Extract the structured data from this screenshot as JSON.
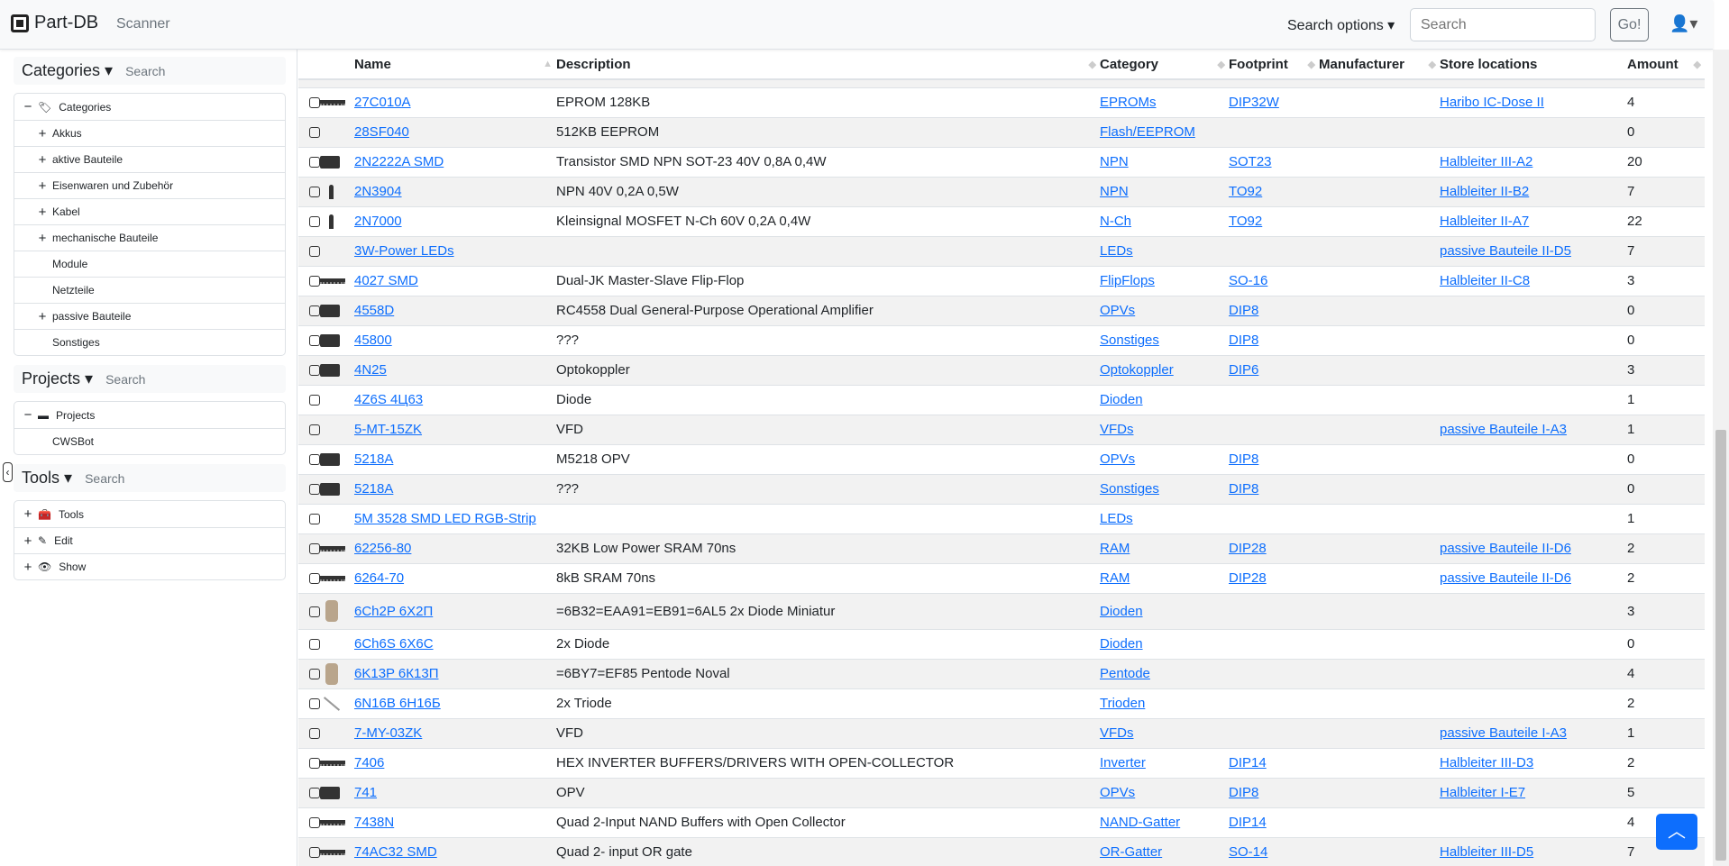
{
  "nav": {
    "brand": "Part-DB",
    "scanner": "Scanner",
    "search_options": "Search options",
    "search_placeholder": "Search",
    "go": "Go!"
  },
  "sidebar": {
    "categories": {
      "title": "Categories",
      "search": "Search",
      "items": [
        {
          "label": "Categories",
          "pm": "−",
          "root": true
        },
        {
          "label": "Akkus",
          "pm": "+"
        },
        {
          "label": "aktive Bauteile",
          "pm": "+"
        },
        {
          "label": "Eisenwaren und Zubehör",
          "pm": "+"
        },
        {
          "label": "Kabel",
          "pm": "+"
        },
        {
          "label": "mechanische Bauteile",
          "pm": "+"
        },
        {
          "label": "Module",
          "pm": ""
        },
        {
          "label": "Netzteile",
          "pm": ""
        },
        {
          "label": "passive Bauteile",
          "pm": "+"
        },
        {
          "label": "Sonstiges",
          "pm": ""
        }
      ]
    },
    "projects": {
      "title": "Projects",
      "search": "Search",
      "items": [
        {
          "label": "Projects",
          "pm": "−",
          "root": true
        },
        {
          "label": "CWSBot",
          "pm": ""
        }
      ]
    },
    "tools": {
      "title": "Tools",
      "search": "Search",
      "items": [
        {
          "label": "Tools",
          "pm": "+",
          "root": true
        },
        {
          "label": "Edit",
          "pm": "+",
          "root": true
        },
        {
          "label": "Show",
          "pm": "+",
          "root": true
        }
      ]
    }
  },
  "table": {
    "headers": [
      "Name",
      "Description",
      "Category",
      "Footprint",
      "Manufacturer",
      "Store locations",
      "Amount"
    ],
    "rows": [
      {
        "img": "dip",
        "name": "27C010A",
        "desc": "EPROM 128KB",
        "cat": "EPROMs",
        "fp": "DIP32W",
        "store": "Haribo IC-Dose II",
        "amt": "4"
      },
      {
        "img": "",
        "name": "28SF040",
        "desc": "512KB EEPROM",
        "cat": "Flash/EEPROM",
        "fp": "",
        "store": "",
        "amt": "0"
      },
      {
        "img": "sot",
        "name": "2N2222A SMD",
        "desc": "Transistor SMD NPN SOT-23 40V 0,8A 0,4W",
        "cat": "NPN",
        "fp": "SOT23",
        "store": "Halbleiter III-A2",
        "amt": "20"
      },
      {
        "img": "to92",
        "name": "2N3904",
        "desc": "NPN 40V 0,2A 0,5W",
        "cat": "NPN",
        "fp": "TO92",
        "store": "Halbleiter II-B2",
        "amt": "7"
      },
      {
        "img": "to92",
        "name": "2N7000",
        "desc": "Kleinsignal MOSFET N-Ch 60V 0,2A 0,4W",
        "cat": "N-Ch",
        "fp": "TO92",
        "store": "Halbleiter II-A7",
        "amt": "22"
      },
      {
        "img": "",
        "name": "3W-Power LEDs",
        "desc": "",
        "cat": "LEDs",
        "fp": "",
        "store": "passive Bauteile II-D5",
        "amt": "7"
      },
      {
        "img": "dip",
        "name": "4027 SMD",
        "desc": "Dual-JK Master-Slave Flip-Flop",
        "cat": "FlipFlops",
        "fp": "SO-16",
        "store": "Halbleiter II-C8",
        "amt": "3"
      },
      {
        "img": "sot",
        "name": "4558D",
        "desc": "RC4558 Dual General-Purpose Operational Amplifier",
        "cat": "OPVs",
        "fp": "DIP8",
        "store": "",
        "amt": "0"
      },
      {
        "img": "sot",
        "name": "45800",
        "desc": "???",
        "cat": "Sonstiges",
        "fp": "DIP8",
        "store": "",
        "amt": "0"
      },
      {
        "img": "sot",
        "name": "4N25",
        "desc": "Optokoppler",
        "cat": "Optokoppler",
        "fp": "DIP6",
        "store": "",
        "amt": "3"
      },
      {
        "img": "",
        "name": "4Z6S 4Ц63",
        "desc": "Diode",
        "cat": "Dioden",
        "fp": "",
        "store": "",
        "amt": "1"
      },
      {
        "img": "",
        "name": "5-MT-15ZK",
        "desc": "VFD",
        "cat": "VFDs",
        "fp": "",
        "store": "passive Bauteile I-A3",
        "amt": "1"
      },
      {
        "img": "sot",
        "name": "5218A",
        "desc": "M5218 OPV",
        "cat": "OPVs",
        "fp": "DIP8",
        "store": "",
        "amt": "0"
      },
      {
        "img": "sot",
        "name": "5218A",
        "desc": "???",
        "cat": "Sonstiges",
        "fp": "DIP8",
        "store": "",
        "amt": "0"
      },
      {
        "img": "",
        "name": "5M 3528 SMD LED RGB-Strip",
        "desc": "",
        "cat": "LEDs",
        "fp": "",
        "store": "",
        "amt": "1"
      },
      {
        "img": "dip",
        "name": "62256-80",
        "desc": "32KB Low Power SRAM 70ns",
        "cat": "RAM",
        "fp": "DIP28",
        "store": "passive Bauteile II-D6",
        "amt": "2"
      },
      {
        "img": "dip",
        "name": "6264-70",
        "desc": "8kB SRAM 70ns",
        "cat": "RAM",
        "fp": "DIP28",
        "store": "passive Bauteile II-D6",
        "amt": "2"
      },
      {
        "img": "tube",
        "name": "6Ch2P 6Х2П",
        "desc": "=6B32=EAA91=EB91=6AL5 2x Diode Miniatur",
        "cat": "Dioden",
        "fp": "",
        "store": "",
        "amt": "3",
        "tall": true
      },
      {
        "img": "",
        "name": "6Ch6S 6Х6С",
        "desc": "2x Diode",
        "cat": "Dioden",
        "fp": "",
        "store": "",
        "amt": "0"
      },
      {
        "img": "tube",
        "name": "6K13P 6К13П",
        "desc": "=6BY7=EF85 Pentode Noval",
        "cat": "Pentode",
        "fp": "",
        "store": "",
        "amt": "4"
      },
      {
        "img": "wire",
        "name": "6N16B 6Н16Б",
        "desc": "2x Triode",
        "cat": "Trioden",
        "fp": "",
        "store": "",
        "amt": "2"
      },
      {
        "img": "",
        "name": "7-MY-03ZK",
        "desc": "VFD",
        "cat": "VFDs",
        "fp": "",
        "store": "passive Bauteile I-A3",
        "amt": "1"
      },
      {
        "img": "dip",
        "name": "7406",
        "desc": "HEX INVERTER BUFFERS/DRIVERS WITH OPEN-COLLECTOR",
        "cat": "Inverter",
        "fp": "DIP14",
        "store": "Halbleiter III-D3",
        "amt": "2"
      },
      {
        "img": "sot",
        "name": "741",
        "desc": "OPV",
        "cat": "OPVs",
        "fp": "DIP8",
        "store": "Halbleiter I-E7",
        "amt": "5"
      },
      {
        "img": "dip",
        "name": "7438N",
        "desc": "Quad 2-Input NAND Buffers with Open Collector",
        "cat": "NAND-Gatter",
        "fp": "DIP14",
        "store": "",
        "amt": "4"
      },
      {
        "img": "dip",
        "name": "74AC32 SMD",
        "desc": "Quad 2- input OR gate",
        "cat": "OR-Gatter",
        "fp": "SO-14",
        "store": "Halbleiter III-D5",
        "amt": "7"
      }
    ]
  },
  "back_to_top": "^"
}
